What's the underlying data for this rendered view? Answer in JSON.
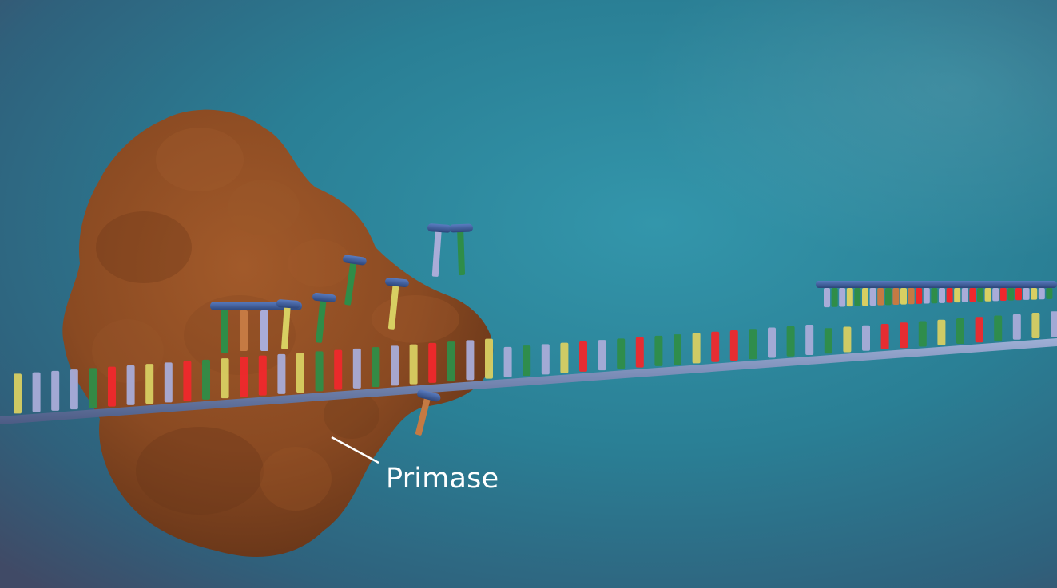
{
  "scene": {
    "label": {
      "text": "Primase"
    },
    "colors": {
      "background_center": "#2f8fa4",
      "background_edge": "#3a4c68",
      "protein": "#8a4a22",
      "protein_highlight": "#a65d2c",
      "protein_shadow": "#5c2f14",
      "backbone": "#7d8fb8",
      "backbone_dark": "#5a6a92",
      "primer_backbone": "#3e5e98",
      "base_yellow": "#d8cf62",
      "base_lavender": "#a9acd8",
      "base_green": "#2f8d48",
      "base_red": "#f0282c",
      "base_orange": "#c57a43"
    }
  }
}
